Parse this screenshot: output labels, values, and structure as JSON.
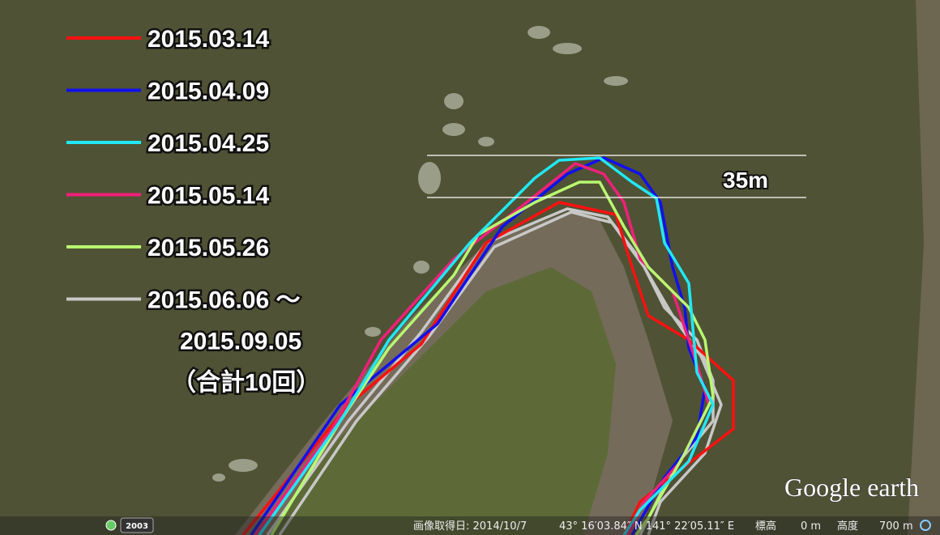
{
  "legend": [
    {
      "label": [
        "2015.03.14"
      ],
      "color": "#ff1010"
    },
    {
      "label": [
        "2015.04.09"
      ],
      "color": "#1010ee"
    },
    {
      "label": [
        "2015.04.25"
      ],
      "color": "#20e8f8"
    },
    {
      "label": [
        "2015.05.14"
      ],
      "color": "#f0207a"
    },
    {
      "label": [
        "2015.05.26"
      ],
      "color": "#b8f870"
    },
    {
      "label": [
        "2015.06.06 ～",
        "2015.09.05",
        "（合計10回）"
      ],
      "color": "#c8c8c8"
    }
  ],
  "annotation": "35m",
  "logo": "Google earth",
  "clock_year": "2003",
  "status_bar": [
    "画像取得日: 2014/10/7",
    "43° 16′03.84″ N 141° 22′05.11″ E",
    "標高",
    "0 m",
    "高度",
    "700 m"
  ]
}
